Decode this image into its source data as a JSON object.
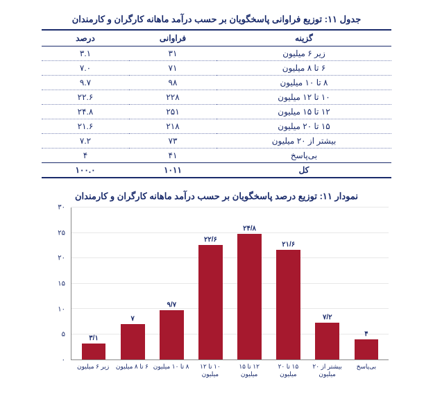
{
  "table": {
    "title": "جدول ۱۱: توزیع فراوانی پاسخگویان بر حسب درآمد ماهانه کارگران و کارمندان",
    "columns": {
      "option": "گزینه",
      "frequency": "فراوانی",
      "percent": "درصد"
    },
    "rows": [
      {
        "option": "زیر ۶ میلیون",
        "frequency": "۳۱",
        "percent": "۳.۱"
      },
      {
        "option": "۶ تا ۸ میلیون",
        "frequency": "۷۱",
        "percent": "۷.۰"
      },
      {
        "option": "۸ تا ۱۰ میلیون",
        "frequency": "۹۸",
        "percent": "۹.۷"
      },
      {
        "option": "۱۰ تا ۱۲ میلیون",
        "frequency": "۲۲۸",
        "percent": "۲۲.۶"
      },
      {
        "option": "۱۲ تا ۱۵ میلیون",
        "frequency": "۲۵۱",
        "percent": "۲۴.۸"
      },
      {
        "option": "۱۵ تا ۲۰ میلیون",
        "frequency": "۲۱۸",
        "percent": "۲۱.۶"
      },
      {
        "option": "بیشتر از ۲۰ میلیون",
        "frequency": "۷۳",
        "percent": "۷.۲"
      },
      {
        "option": "بی‌پاسخ",
        "frequency": "۴۱",
        "percent": "۴"
      },
      {
        "option": "کل",
        "frequency": "۱۰۱۱",
        "percent": "۱۰۰.۰"
      }
    ]
  },
  "chart": {
    "title": "نمودار ۱۱: توزیع درصد پاسخگویان بر حسب درآمد ماهانه کارگران و کارمندان",
    "type": "bar",
    "bar_color": "#a6192e",
    "text_color": "#1a2b6b",
    "background_color": "#ffffff",
    "grid_color": "#e8e8e8",
    "axis_color": "#888888",
    "ylim": [
      0,
      30
    ],
    "ytick_step": 5,
    "yticks": [
      "۰",
      "۵",
      "۱۰",
      "۱۵",
      "۲۰",
      "۲۵",
      "۳۰"
    ],
    "label_fontsize": 10,
    "title_fontsize": 13,
    "bar_width_pct": 62,
    "categories": [
      "زیر ۶ میلیون",
      "۶ تا ۸ میلیون",
      "۸ تا ۱۰ میلیون",
      "۱۰ تا ۱۲ میلیون",
      "۱۲ تا ۱۵ میلیون",
      "۱۵ تا ۲۰ میلیون",
      "بیشتر از ۲۰ میلیون",
      "بی‌پاسخ"
    ],
    "values": [
      3.1,
      7.0,
      9.7,
      22.6,
      24.8,
      21.6,
      7.2,
      4.0
    ],
    "value_labels": [
      "۳/۱",
      "۷",
      "۹/۷",
      "۲۲/۶",
      "۲۴/۸",
      "۲۱/۶",
      "۷/۲",
      "۴"
    ]
  }
}
